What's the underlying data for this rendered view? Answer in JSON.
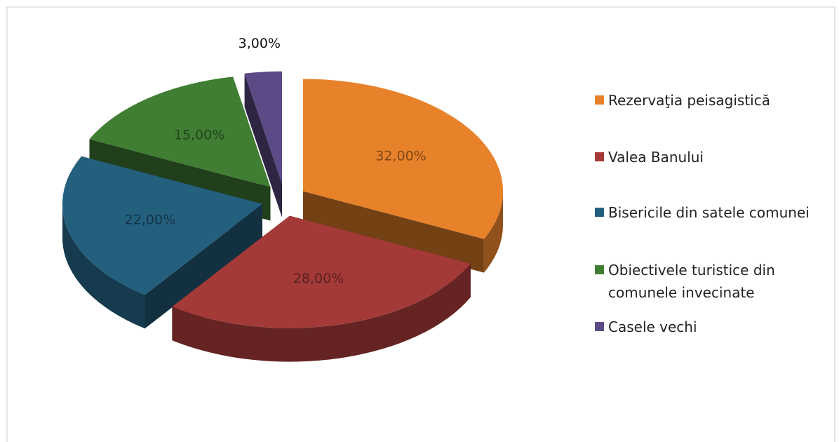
{
  "chart_data": {
    "type": "pie",
    "categories": [
      "Rezervaţia peisagistică",
      "Valea Banului",
      "Bisericile din satele comunei",
      "Obiectivele turistice din comunele invecinate",
      "Casele vechi"
    ],
    "values": [
      32,
      28,
      22,
      15,
      3
    ],
    "value_labels": [
      "32,00%",
      "28,00%",
      "22,00%",
      "15,00%",
      "3,00%"
    ],
    "colors": [
      "#e8822a",
      "#a33a38",
      "#245f7e",
      "#3f7e33",
      "#5b4a86"
    ]
  }
}
